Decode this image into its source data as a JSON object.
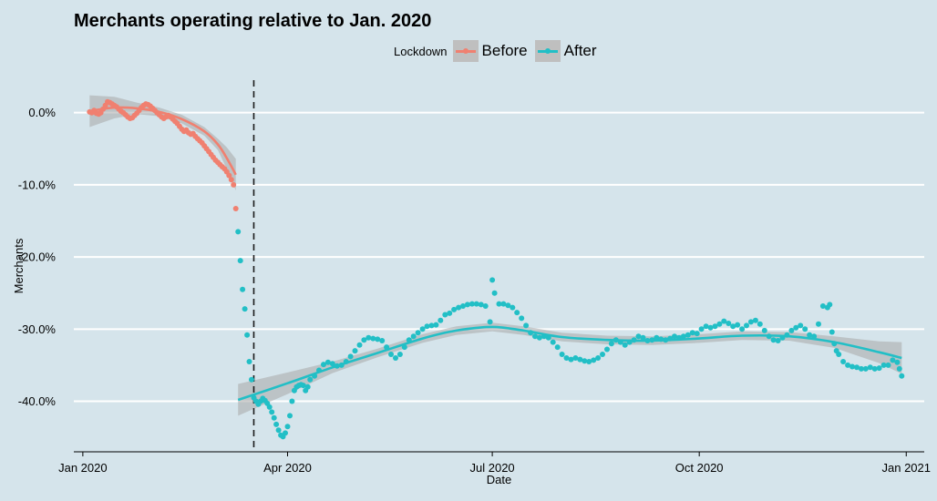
{
  "chart_data": {
    "type": "scatter",
    "title": "Merchants operating relative to Jan. 2020",
    "xlabel": "Date",
    "ylabel": "Merchants",
    "legend": {
      "title": "Lockdown",
      "placement": "top"
    },
    "xlim": [
      "2019-12-28",
      "2021-01-09"
    ],
    "ylim": [
      -47,
      4.5
    ],
    "x_ticks": [
      {
        "date": "2020-01-01",
        "label": "Jan 2020"
      },
      {
        "date": "2020-04-01",
        "label": "Apr 2020"
      },
      {
        "date": "2020-07-01",
        "label": "Jul 2020"
      },
      {
        "date": "2020-10-01",
        "label": "Oct 2020"
      },
      {
        "date": "2021-01-01",
        "label": "Jan 2021"
      }
    ],
    "y_ticks": [
      {
        "value": 0,
        "label": "0.0%"
      },
      {
        "value": -10,
        "label": "-10.0%"
      },
      {
        "value": -20,
        "label": "-20.0%"
      },
      {
        "value": -30,
        "label": "-30.0%"
      },
      {
        "value": -40,
        "label": "-40.0%"
      }
    ],
    "grid": {
      "horizontal": true,
      "vertical": false
    },
    "lockdown_date": "2020-03-17",
    "series": [
      {
        "name": "Before",
        "color": "#f08070",
        "points": [
          [
            "2020-01-04",
            0.1
          ],
          [
            "2020-01-05",
            0.0
          ],
          [
            "2020-01-06",
            0.3
          ],
          [
            "2020-01-07",
            -0.1
          ],
          [
            "2020-01-08",
            -0.2
          ],
          [
            "2020-01-09",
            0.0
          ],
          [
            "2020-01-10",
            0.5
          ],
          [
            "2020-01-11",
            1.0
          ],
          [
            "2020-01-12",
            1.5
          ],
          [
            "2020-01-13",
            1.4
          ],
          [
            "2020-01-14",
            1.2
          ],
          [
            "2020-01-15",
            1.0
          ],
          [
            "2020-01-16",
            0.8
          ],
          [
            "2020-01-17",
            0.5
          ],
          [
            "2020-01-18",
            0.2
          ],
          [
            "2020-01-19",
            0.0
          ],
          [
            "2020-01-20",
            -0.3
          ],
          [
            "2020-01-21",
            -0.6
          ],
          [
            "2020-01-22",
            -0.8
          ],
          [
            "2020-01-23",
            -0.7
          ],
          [
            "2020-01-24",
            -0.4
          ],
          [
            "2020-01-25",
            -0.1
          ],
          [
            "2020-01-26",
            0.3
          ],
          [
            "2020-01-27",
            0.7
          ],
          [
            "2020-01-28",
            1.0
          ],
          [
            "2020-01-29",
            1.2
          ],
          [
            "2020-01-30",
            1.1
          ],
          [
            "2020-01-31",
            0.9
          ],
          [
            "2020-02-01",
            0.6
          ],
          [
            "2020-02-02",
            0.3
          ],
          [
            "2020-02-03",
            0.0
          ],
          [
            "2020-02-04",
            -0.3
          ],
          [
            "2020-02-05",
            -0.6
          ],
          [
            "2020-02-06",
            -0.8
          ],
          [
            "2020-02-07",
            -0.6
          ],
          [
            "2020-02-08",
            -0.4
          ],
          [
            "2020-02-09",
            -0.6
          ],
          [
            "2020-02-10",
            -0.9
          ],
          [
            "2020-02-11",
            -1.2
          ],
          [
            "2020-02-12",
            -1.5
          ],
          [
            "2020-02-13",
            -1.9
          ],
          [
            "2020-02-14",
            -2.3
          ],
          [
            "2020-02-15",
            -2.6
          ],
          [
            "2020-02-16",
            -2.4
          ],
          [
            "2020-02-17",
            -2.8
          ],
          [
            "2020-02-18",
            -3.0
          ],
          [
            "2020-02-19",
            -2.9
          ],
          [
            "2020-02-20",
            -3.3
          ],
          [
            "2020-02-21",
            -3.6
          ],
          [
            "2020-02-22",
            -3.9
          ],
          [
            "2020-02-23",
            -4.2
          ],
          [
            "2020-02-24",
            -4.6
          ],
          [
            "2020-02-25",
            -5.0
          ],
          [
            "2020-02-26",
            -5.4
          ],
          [
            "2020-02-27",
            -5.8
          ],
          [
            "2020-02-28",
            -6.2
          ],
          [
            "2020-02-29",
            -6.6
          ],
          [
            "2020-03-01",
            -6.9
          ],
          [
            "2020-03-02",
            -7.2
          ],
          [
            "2020-03-03",
            -7.5
          ],
          [
            "2020-03-04",
            -7.8
          ],
          [
            "2020-03-05",
            -8.2
          ],
          [
            "2020-03-06",
            -8.7
          ],
          [
            "2020-03-07",
            -9.3
          ],
          [
            "2020-03-08",
            -10.0
          ],
          [
            "2020-03-09",
            -13.3
          ]
        ],
        "smooth": [
          [
            "2020-01-04",
            0.2
          ],
          [
            "2020-01-15",
            0.7
          ],
          [
            "2020-01-25",
            0.6
          ],
          [
            "2020-02-04",
            0.1
          ],
          [
            "2020-02-14",
            -0.9
          ],
          [
            "2020-02-24",
            -2.6
          ],
          [
            "2020-03-01",
            -4.4
          ],
          [
            "2020-03-05",
            -6.3
          ],
          [
            "2020-03-09",
            -8.6
          ]
        ]
      },
      {
        "name": "After",
        "color": "#22bfc6",
        "points": [
          [
            "2020-03-10",
            -16.5
          ],
          [
            "2020-03-11",
            -20.5
          ],
          [
            "2020-03-12",
            -24.5
          ],
          [
            "2020-03-13",
            -27.2
          ],
          [
            "2020-03-14",
            -30.8
          ],
          [
            "2020-03-15",
            -34.5
          ],
          [
            "2020-03-16",
            -37.0
          ],
          [
            "2020-03-17",
            -39.5
          ],
          [
            "2020-03-18",
            -40.0
          ],
          [
            "2020-03-19",
            -40.4
          ],
          [
            "2020-03-20",
            -40.0
          ],
          [
            "2020-03-21",
            -39.6
          ],
          [
            "2020-03-22",
            -39.9
          ],
          [
            "2020-03-23",
            -40.3
          ],
          [
            "2020-03-24",
            -40.8
          ],
          [
            "2020-03-25",
            -41.5
          ],
          [
            "2020-03-26",
            -42.3
          ],
          [
            "2020-03-27",
            -43.2
          ],
          [
            "2020-03-28",
            -44.0
          ],
          [
            "2020-03-29",
            -44.7
          ],
          [
            "2020-03-30",
            -44.9
          ],
          [
            "2020-03-31",
            -44.4
          ],
          [
            "2020-04-01",
            -43.5
          ],
          [
            "2020-04-02",
            -42.0
          ],
          [
            "2020-04-03",
            -40.0
          ],
          [
            "2020-04-04",
            -38.5
          ],
          [
            "2020-04-05",
            -38.0
          ],
          [
            "2020-04-06",
            -37.8
          ],
          [
            "2020-04-07",
            -37.7
          ],
          [
            "2020-04-08",
            -37.8
          ],
          [
            "2020-04-09",
            -38.5
          ],
          [
            "2020-04-10",
            -38.0
          ],
          [
            "2020-04-11",
            -37.0
          ],
          [
            "2020-04-13",
            -36.5
          ],
          [
            "2020-04-15",
            -35.7
          ],
          [
            "2020-04-17",
            -34.9
          ],
          [
            "2020-04-19",
            -34.6
          ],
          [
            "2020-04-21",
            -34.8
          ],
          [
            "2020-04-23",
            -35.1
          ],
          [
            "2020-04-25",
            -35.0
          ],
          [
            "2020-04-27",
            -34.5
          ],
          [
            "2020-04-29",
            -33.8
          ],
          [
            "2020-05-01",
            -33.0
          ],
          [
            "2020-05-03",
            -32.2
          ],
          [
            "2020-05-05",
            -31.5
          ],
          [
            "2020-05-07",
            -31.2
          ],
          [
            "2020-05-09",
            -31.3
          ],
          [
            "2020-05-11",
            -31.4
          ],
          [
            "2020-05-13",
            -31.6
          ],
          [
            "2020-05-15",
            -32.5
          ],
          [
            "2020-05-17",
            -33.5
          ],
          [
            "2020-05-19",
            -34.0
          ],
          [
            "2020-05-21",
            -33.5
          ],
          [
            "2020-05-23",
            -32.5
          ],
          [
            "2020-05-25",
            -31.5
          ],
          [
            "2020-05-27",
            -31.0
          ],
          [
            "2020-05-29",
            -30.5
          ],
          [
            "2020-05-31",
            -30.0
          ],
          [
            "2020-06-02",
            -29.6
          ],
          [
            "2020-06-04",
            -29.5
          ],
          [
            "2020-06-06",
            -29.4
          ],
          [
            "2020-06-08",
            -28.8
          ],
          [
            "2020-06-10",
            -28.0
          ],
          [
            "2020-06-12",
            -27.8
          ],
          [
            "2020-06-14",
            -27.3
          ],
          [
            "2020-06-16",
            -27.0
          ],
          [
            "2020-06-18",
            -26.8
          ],
          [
            "2020-06-20",
            -26.6
          ],
          [
            "2020-06-22",
            -26.5
          ],
          [
            "2020-06-24",
            -26.5
          ],
          [
            "2020-06-26",
            -26.6
          ],
          [
            "2020-06-28",
            -26.8
          ],
          [
            "2020-06-30",
            -29.0
          ],
          [
            "2020-07-01",
            -23.2
          ],
          [
            "2020-07-02",
            -25.0
          ],
          [
            "2020-07-04",
            -26.5
          ],
          [
            "2020-07-06",
            -26.5
          ],
          [
            "2020-07-08",
            -26.7
          ],
          [
            "2020-07-10",
            -27.0
          ],
          [
            "2020-07-12",
            -27.7
          ],
          [
            "2020-07-14",
            -28.5
          ],
          [
            "2020-07-16",
            -29.5
          ],
          [
            "2020-07-18",
            -30.5
          ],
          [
            "2020-07-20",
            -31.0
          ],
          [
            "2020-07-22",
            -31.2
          ],
          [
            "2020-07-24",
            -31.0
          ],
          [
            "2020-07-26",
            -31.2
          ],
          [
            "2020-07-28",
            -31.8
          ],
          [
            "2020-07-30",
            -32.5
          ],
          [
            "2020-08-01",
            -33.5
          ],
          [
            "2020-08-03",
            -34.0
          ],
          [
            "2020-08-05",
            -34.2
          ],
          [
            "2020-08-07",
            -34.0
          ],
          [
            "2020-08-09",
            -34.2
          ],
          [
            "2020-08-11",
            -34.4
          ],
          [
            "2020-08-13",
            -34.5
          ],
          [
            "2020-08-15",
            -34.3
          ],
          [
            "2020-08-17",
            -34.0
          ],
          [
            "2020-08-19",
            -33.5
          ],
          [
            "2020-08-21",
            -32.8
          ],
          [
            "2020-08-23",
            -32.0
          ],
          [
            "2020-08-25",
            -31.5
          ],
          [
            "2020-08-27",
            -31.8
          ],
          [
            "2020-08-29",
            -32.2
          ],
          [
            "2020-08-31",
            -31.8
          ],
          [
            "2020-09-02",
            -31.5
          ],
          [
            "2020-09-04",
            -31.0
          ],
          [
            "2020-09-06",
            -31.2
          ],
          [
            "2020-09-08",
            -31.6
          ],
          [
            "2020-09-10",
            -31.5
          ],
          [
            "2020-09-12",
            -31.2
          ],
          [
            "2020-09-14",
            -31.4
          ],
          [
            "2020-09-16",
            -31.5
          ],
          [
            "2020-09-18",
            -31.3
          ],
          [
            "2020-09-20",
            -31.0
          ],
          [
            "2020-09-22",
            -31.2
          ],
          [
            "2020-09-24",
            -31.0
          ],
          [
            "2020-09-26",
            -30.8
          ],
          [
            "2020-09-28",
            -30.5
          ],
          [
            "2020-09-30",
            -30.6
          ],
          [
            "2020-10-02",
            -30.0
          ],
          [
            "2020-10-04",
            -29.6
          ],
          [
            "2020-10-06",
            -29.8
          ],
          [
            "2020-10-08",
            -29.6
          ],
          [
            "2020-10-10",
            -29.3
          ],
          [
            "2020-10-12",
            -28.9
          ],
          [
            "2020-10-14",
            -29.2
          ],
          [
            "2020-10-16",
            -29.6
          ],
          [
            "2020-10-18",
            -29.4
          ],
          [
            "2020-10-20",
            -30.0
          ],
          [
            "2020-10-22",
            -29.5
          ],
          [
            "2020-10-24",
            -29.0
          ],
          [
            "2020-10-26",
            -28.8
          ],
          [
            "2020-10-28",
            -29.3
          ],
          [
            "2020-10-30",
            -30.2
          ],
          [
            "2020-11-01",
            -31.0
          ],
          [
            "2020-11-03",
            -31.5
          ],
          [
            "2020-11-05",
            -31.6
          ],
          [
            "2020-11-07",
            -31.2
          ],
          [
            "2020-11-09",
            -30.8
          ],
          [
            "2020-11-11",
            -30.2
          ],
          [
            "2020-11-13",
            -29.8
          ],
          [
            "2020-11-15",
            -29.5
          ],
          [
            "2020-11-17",
            -30.0
          ],
          [
            "2020-11-19",
            -30.8
          ],
          [
            "2020-11-21",
            -31.0
          ],
          [
            "2020-11-23",
            -29.3
          ],
          [
            "2020-11-25",
            -26.8
          ],
          [
            "2020-11-27",
            -27.0
          ],
          [
            "2020-11-28",
            -26.6
          ],
          [
            "2020-11-29",
            -30.4
          ],
          [
            "2020-11-30",
            -32.0
          ],
          [
            "2020-12-01",
            -33.0
          ],
          [
            "2020-12-02",
            -33.5
          ],
          [
            "2020-12-04",
            -34.5
          ],
          [
            "2020-12-06",
            -35.0
          ],
          [
            "2020-12-08",
            -35.2
          ],
          [
            "2020-12-10",
            -35.3
          ],
          [
            "2020-12-12",
            -35.5
          ],
          [
            "2020-12-14",
            -35.5
          ],
          [
            "2020-12-16",
            -35.3
          ],
          [
            "2020-12-18",
            -35.5
          ],
          [
            "2020-12-20",
            -35.4
          ],
          [
            "2020-12-22",
            -35.0
          ],
          [
            "2020-12-24",
            -35.0
          ],
          [
            "2020-12-26",
            -34.3
          ],
          [
            "2020-12-28",
            -34.6
          ],
          [
            "2020-12-29",
            -35.5
          ],
          [
            "2020-12-30",
            -36.5
          ]
        ],
        "smooth": [
          [
            "2020-03-10",
            -39.8
          ],
          [
            "2020-04-01",
            -37.5
          ],
          [
            "2020-04-21",
            -35.3
          ],
          [
            "2020-05-11",
            -33.3
          ],
          [
            "2020-05-31",
            -31.3
          ],
          [
            "2020-06-15",
            -30.2
          ],
          [
            "2020-07-01",
            -29.7
          ],
          [
            "2020-07-15",
            -30.2
          ],
          [
            "2020-08-01",
            -31.1
          ],
          [
            "2020-08-21",
            -31.5
          ],
          [
            "2020-09-10",
            -31.6
          ],
          [
            "2020-10-01",
            -31.3
          ],
          [
            "2020-10-20",
            -30.9
          ],
          [
            "2020-11-10",
            -31.0
          ],
          [
            "2020-11-30",
            -31.8
          ],
          [
            "2020-12-20",
            -33.2
          ],
          [
            "2020-12-30",
            -34.0
          ]
        ]
      }
    ]
  }
}
